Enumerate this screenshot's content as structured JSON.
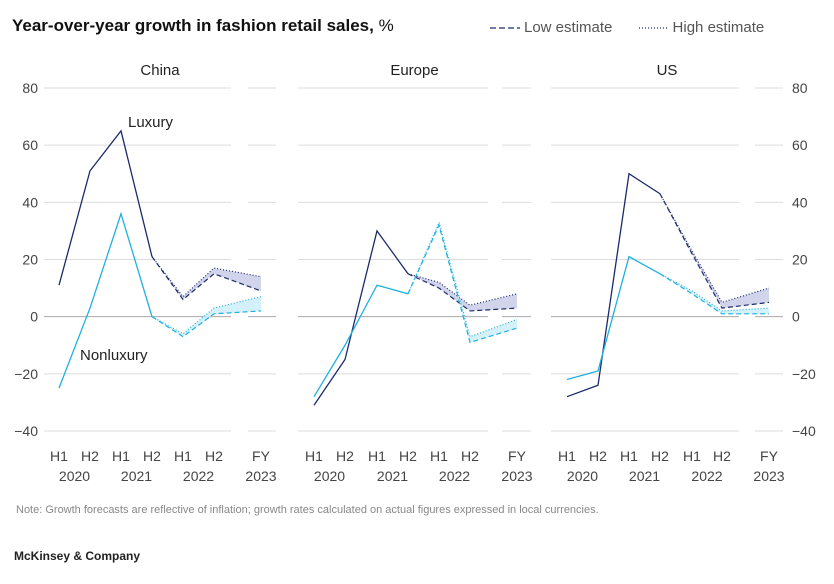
{
  "header": {
    "title_bold": "Year-over-year growth in fashion retail sales,",
    "title_unit": "%"
  },
  "legend": {
    "low_label": "Low estimate",
    "high_label": "High estimate"
  },
  "note": "Note: Growth forecasts are reflective of inflation; growth rates calculated on actual figures expressed in local currencies.",
  "brand": "McKinsey & Company",
  "colors": {
    "luxury": "#1b2a6b",
    "nonluxury": "#1fb0e0",
    "luxury_band": "#c9cce6",
    "nonluxury_band": "#cdeefa",
    "grid": "#dddddd",
    "zero": "#aaaaaa"
  },
  "chart_data": {
    "type": "line",
    "ylim": [
      -40,
      80
    ],
    "yticks": [
      80,
      60,
      40,
      20,
      0,
      -20,
      -40
    ],
    "x_top": [
      "H1",
      "H2",
      "H1",
      "H2",
      "H1",
      "H2",
      "FY"
    ],
    "x_bottom": [
      "2020",
      "",
      "2021",
      "",
      "2022",
      "",
      "2023"
    ],
    "annotations": {
      "luxury": "Luxury",
      "nonluxury": "Nonluxury"
    },
    "panels": [
      {
        "title": "China",
        "series": [
          {
            "name": "Luxury",
            "actual": [
              11,
              51,
              65,
              21
            ],
            "low": [
              21,
              6,
              15,
              9
            ],
            "high": [
              21,
              7,
              17,
              14
            ]
          },
          {
            "name": "Nonluxury",
            "actual": [
              -25,
              3,
              36,
              0
            ],
            "low": [
              0,
              -7,
              1,
              2
            ],
            "high": [
              0,
              -6,
              3,
              7
            ]
          }
        ]
      },
      {
        "title": "Europe",
        "series": [
          {
            "name": "Luxury",
            "actual": [
              -31,
              -15,
              30,
              15
            ],
            "low": [
              15,
              10,
              2,
              3
            ],
            "high": [
              15,
              12,
              4,
              8
            ]
          },
          {
            "name": "Nonluxury",
            "actual": [
              -28,
              -10,
              11,
              8
            ],
            "low": [
              8,
              32,
              -9,
              -4
            ],
            "high": [
              8,
              33,
              -7,
              -1
            ]
          }
        ]
      },
      {
        "title": "US",
        "series": [
          {
            "name": "Luxury",
            "actual": [
              -28,
              -24,
              50,
              43
            ],
            "low": [
              43,
              22,
              3,
              5
            ],
            "high": [
              43,
              23,
              5,
              10
            ]
          },
          {
            "name": "Nonluxury",
            "actual": [
              -22,
              -19,
              21,
              15
            ],
            "low": [
              15,
              8,
              1,
              1
            ],
            "high": [
              15,
              9,
              2,
              3
            ]
          }
        ]
      }
    ]
  }
}
